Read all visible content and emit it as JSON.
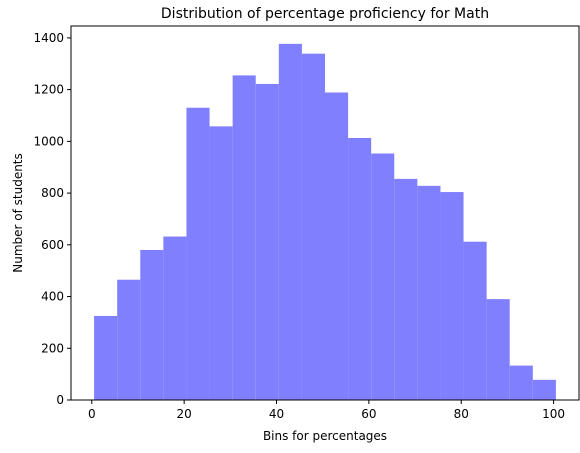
{
  "chart_data": {
    "type": "bar",
    "title": "Distribution of percentage proficiency for Math",
    "xlabel": "Bins for percentages",
    "ylabel": "Number of students",
    "bins": [
      {
        "start": 0.5,
        "end": 5.5,
        "count": 325
      },
      {
        "start": 5.5,
        "end": 10.5,
        "count": 465
      },
      {
        "start": 10.5,
        "end": 15.5,
        "count": 580
      },
      {
        "start": 15.5,
        "end": 20.5,
        "count": 632
      },
      {
        "start": 20.5,
        "end": 25.5,
        "count": 1130
      },
      {
        "start": 25.5,
        "end": 30.5,
        "count": 1058
      },
      {
        "start": 30.5,
        "end": 35.5,
        "count": 1255
      },
      {
        "start": 35.5,
        "end": 40.5,
        "count": 1222
      },
      {
        "start": 40.5,
        "end": 45.5,
        "count": 1377
      },
      {
        "start": 45.5,
        "end": 50.5,
        "count": 1339
      },
      {
        "start": 50.5,
        "end": 55.5,
        "count": 1189
      },
      {
        "start": 55.5,
        "end": 60.5,
        "count": 1013
      },
      {
        "start": 60.5,
        "end": 65.5,
        "count": 953
      },
      {
        "start": 65.5,
        "end": 70.5,
        "count": 855
      },
      {
        "start": 70.5,
        "end": 75.5,
        "count": 828
      },
      {
        "start": 75.5,
        "end": 80.5,
        "count": 804
      },
      {
        "start": 80.5,
        "end": 85.5,
        "count": 612
      },
      {
        "start": 85.5,
        "end": 90.5,
        "count": 390
      },
      {
        "start": 90.5,
        "end": 95.5,
        "count": 133
      },
      {
        "start": 95.5,
        "end": 100.5,
        "count": 78
      }
    ],
    "xlim": [
      -4.5,
      105.5
    ],
    "ylim": [
      0,
      1446
    ],
    "xticks": [
      0,
      20,
      40,
      60,
      80,
      100
    ],
    "yticks": [
      0,
      200,
      400,
      600,
      800,
      1000,
      1200,
      1400
    ],
    "bar_color": "#8080ff",
    "grid": false
  }
}
